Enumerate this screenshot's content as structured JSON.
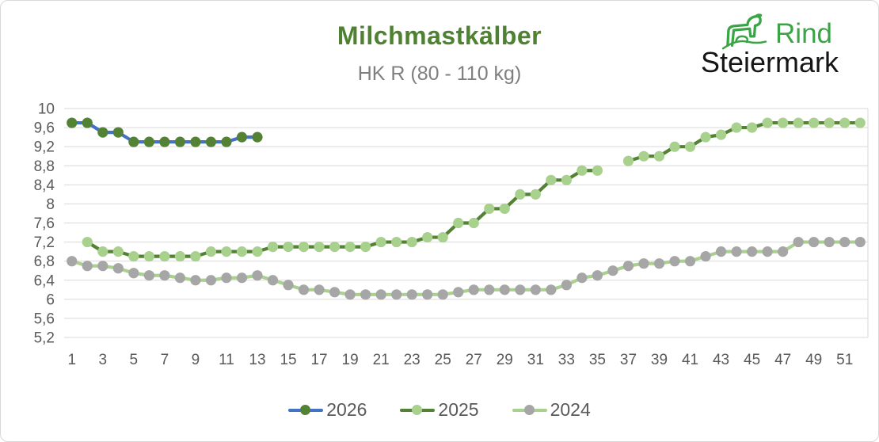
{
  "header": {
    "title": "Milchmastkälber",
    "subtitle": "HK R (80 - 110 kg)"
  },
  "logo": {
    "brand_line1": "Rind",
    "brand_line2": "Steiermark",
    "icon": "cow-outline-icon",
    "green": "#3ba447",
    "black": "#151515"
  },
  "chart_data": {
    "type": "line",
    "title": "Milchmastkälber",
    "subtitle": "HK R (80 - 110 kg)",
    "grid": true,
    "legend_position": "bottom",
    "x_count": 52,
    "x_tick_labels": [
      "1",
      "3",
      "5",
      "7",
      "9",
      "11",
      "13",
      "15",
      "17",
      "19",
      "21",
      "23",
      "25",
      "27",
      "29",
      "31",
      "33",
      "35",
      "37",
      "39",
      "41",
      "43",
      "45",
      "47",
      "49",
      "51"
    ],
    "ylim": [
      5.2,
      10
    ],
    "y_ticks": [
      {
        "v": 10,
        "label": "10"
      },
      {
        "v": 9.6,
        "label": "9,6"
      },
      {
        "v": 9.2,
        "label": "9,2"
      },
      {
        "v": 8.8,
        "label": "8,8"
      },
      {
        "v": 8.4,
        "label": "8,4"
      },
      {
        "v": 8,
        "label": "8"
      },
      {
        "v": 7.6,
        "label": "7,6"
      },
      {
        "v": 7.2,
        "label": "7,2"
      },
      {
        "v": 6.8,
        "label": "6,8"
      },
      {
        "v": 6.4,
        "label": "6,4"
      },
      {
        "v": 6,
        "label": "6"
      },
      {
        "v": 5.6,
        "label": "5,6"
      },
      {
        "v": 5.2,
        "label": "5,2"
      }
    ],
    "gridline_color": "#d9d9d9",
    "tick_label_color": "#595959",
    "series": [
      {
        "name": "2026",
        "line_color": "#4472c4",
        "marker_color": "#548235",
        "start_week": 1,
        "values": [
          9.7,
          9.7,
          9.5,
          9.5,
          9.3,
          9.3,
          9.3,
          9.3,
          9.3,
          9.3,
          9.3,
          9.4,
          9.4
        ]
      },
      {
        "name": "2025",
        "line_color": "#548235",
        "marker_color": "#a9d18e",
        "start_week": 2,
        "values": [
          7.2,
          7.0,
          7.0,
          6.9,
          6.9,
          6.9,
          6.9,
          6.9,
          7.0,
          7.0,
          7.0,
          7.0,
          7.1,
          7.1,
          7.1,
          7.1,
          7.1,
          7.1,
          7.1,
          7.2,
          7.2,
          7.2,
          7.3,
          7.3,
          7.6,
          7.6,
          7.9,
          7.9,
          8.2,
          8.2,
          8.5,
          8.5,
          8.7,
          8.7,
          null,
          8.9,
          9.0,
          9.0,
          9.2,
          9.2,
          9.4,
          9.45,
          9.6,
          9.6,
          9.7,
          9.7,
          9.7,
          9.7,
          9.7,
          9.7,
          9.7
        ]
      },
      {
        "name": "2024",
        "line_color": "#a9d18e",
        "marker_color": "#a6a6a6",
        "start_week": 1,
        "values": [
          6.8,
          6.7,
          6.7,
          6.65,
          6.55,
          6.5,
          6.5,
          6.45,
          6.4,
          6.4,
          6.45,
          6.45,
          6.5,
          6.4,
          6.3,
          6.2,
          6.2,
          6.15,
          6.1,
          6.1,
          6.1,
          6.1,
          6.1,
          6.1,
          6.1,
          6.15,
          6.2,
          6.2,
          6.2,
          6.2,
          6.2,
          6.2,
          6.3,
          6.45,
          6.5,
          6.6,
          6.7,
          6.75,
          6.75,
          6.8,
          6.8,
          6.9,
          7.0,
          7.0,
          7.0,
          7.0,
          7.0,
          7.2,
          7.2,
          7.2,
          7.2,
          7.2
        ]
      }
    ]
  }
}
